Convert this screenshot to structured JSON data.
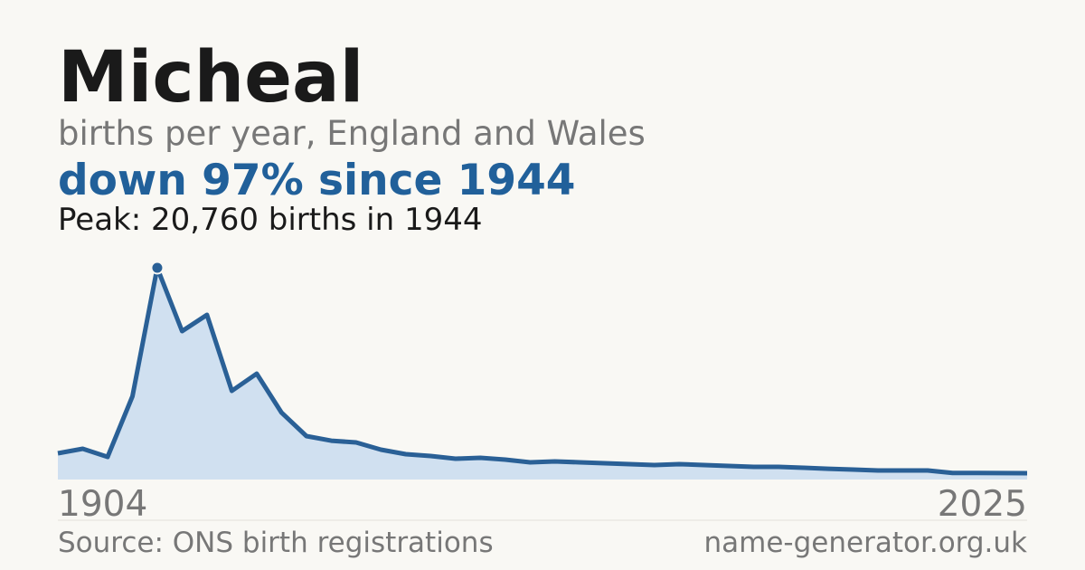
{
  "chart_data": {
    "type": "area",
    "title": "Micheal",
    "subtitle": "births per year, England and Wales",
    "headline": "down 97% since 1944",
    "annotation": "Peak: 20,760 births in 1944",
    "source": "Source: ONS birth registrations",
    "site": "name-generator.org.uk",
    "categories": [
      "1904",
      null,
      null,
      null,
      null,
      null,
      null,
      null,
      null,
      null,
      null,
      null,
      null,
      null,
      null,
      null,
      null,
      null,
      null,
      null,
      null,
      null,
      null,
      null,
      null,
      null,
      null,
      null,
      null,
      null,
      null,
      null,
      null,
      null,
      null,
      null,
      null,
      null,
      null,
      "2025"
    ],
    "values": [
      2570,
      3020,
      2220,
      8160,
      20760,
      14550,
      16150,
      8690,
      10380,
      6560,
      4260,
      3810,
      3640,
      2930,
      2480,
      2310,
      2040,
      2130,
      1950,
      1690,
      1770,
      1690,
      1600,
      1510,
      1420,
      1510,
      1420,
      1330,
      1240,
      1240,
      1150,
      1060,
      980,
      890,
      890,
      890,
      650,
      640,
      630,
      620
    ],
    "peak_index": 4,
    "color": "#2a6096",
    "fill_color": "#d0e0f0",
    "ylim": [
      0,
      20760
    ]
  }
}
